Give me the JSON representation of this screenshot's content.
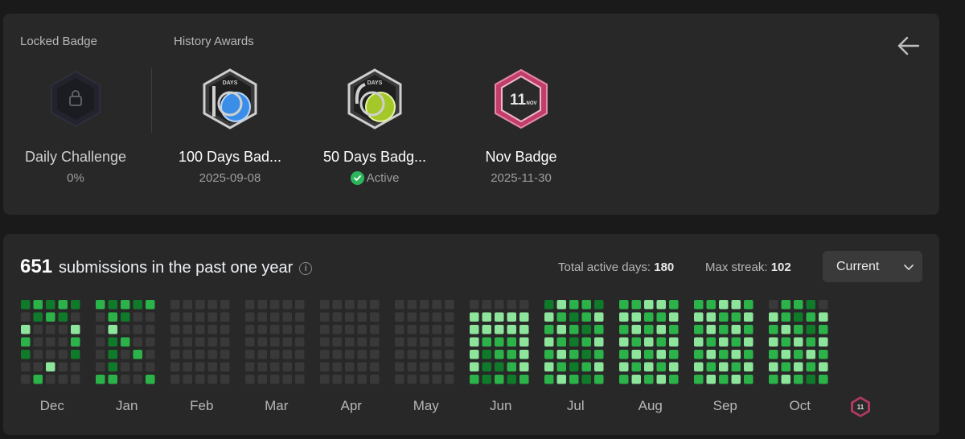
{
  "badges_section": {
    "locked_label": "Locked Badge",
    "history_label": "History Awards",
    "locked": {
      "name": "Daily Challenge",
      "progress": "0%"
    },
    "awards": [
      {
        "name": "100 Days Bad...",
        "date": "2025-09-08",
        "icon": "100-days-badge-icon"
      },
      {
        "name": "50 Days Badg...",
        "status": "Active",
        "icon": "50-days-badge-icon"
      },
      {
        "name": "Nov Badge",
        "date": "2025-11-30",
        "icon": "nov-badge-icon",
        "badge_text": "11",
        "badge_sub": "NOV"
      }
    ],
    "badge_days_text": "DAYS"
  },
  "calendar": {
    "count": "651",
    "title": "submissions in the past one year",
    "active_days_label": "Total active days:",
    "active_days": "180",
    "max_streak_label": "Max streak:",
    "max_streak": "102",
    "range_select": "Current",
    "months": [
      "Dec",
      "Jan",
      "Feb",
      "Mar",
      "Apr",
      "May",
      "Jun",
      "Jul",
      "Aug",
      "Sep",
      "Oct"
    ],
    "colors": {
      "empty": "#393939",
      "level1": "#0f7a2a",
      "level2": "#2bb34a",
      "level3": "#8de59c"
    },
    "activity": [
      "1212",
      "0121",
      "3000",
      "2000",
      "1000",
      "0030",
      "0200",
      "",
      "",
      "",
      "0001",
      "0001",
      "0000",
      "2121",
      "0210",
      "0300",
      "0120",
      "0102",
      "0100",
      "2200",
      "",
      "",
      "",
      "0003",
      "0002",
      "0001",
      "0000",
      "0000",
      "0000",
      "0000",
      "0000",
      "0000",
      "0000",
      "",
      "",
      "",
      "0000",
      "0000",
      "0000",
      "0000",
      "0000",
      "0000",
      "0000",
      "0000",
      "0000",
      "0000",
      "",
      "",
      "",
      "0000",
      "0000",
      "0000",
      "0000",
      "0000",
      "0000",
      "0000",
      "0000",
      "0000",
      "0000",
      "",
      "",
      "",
      "0000",
      "0000",
      "0000",
      "0000",
      "0000",
      "0000",
      "0000",
      "0000",
      "0000",
      "0000",
      "",
      "",
      "",
      "0000",
      "0000",
      "0000",
      "0000",
      "3333",
      "3333",
      "3222",
      "3122",
      "3112",
      "2121",
      "",
      "",
      "",
      "0001",
      "0001",
      "0000",
      "1322",
      "3212",
      "2321",
      "3212",
      "2321",
      "3212",
      "2321",
      "",
      "",
      "",
      "0001",
      "0001",
      "0000",
      "2233",
      "3322",
      "2323",
      "3232",
      "2323",
      "3232",
      "2323",
      "",
      "",
      "",
      "0002",
      "0001",
      "0000",
      "2233",
      "3322",
      "2323",
      "3232",
      "2323",
      "3232",
      "2323",
      "",
      "",
      "",
      "0002",
      "0001",
      "0000",
      "0221",
      "3212",
      "2321",
      "3232",
      "2323",
      "3232",
      "2321",
      "",
      "",
      "",
      "0001",
      "0001",
      "0000",
      "0232",
      "3223",
      "2332",
      "3223",
      "2332",
      "3223",
      "2332",
      "",
      "",
      "",
      "0000",
      "0000",
      "0000"
    ],
    "current_badge_icon": "nov-badge-mini-icon"
  }
}
